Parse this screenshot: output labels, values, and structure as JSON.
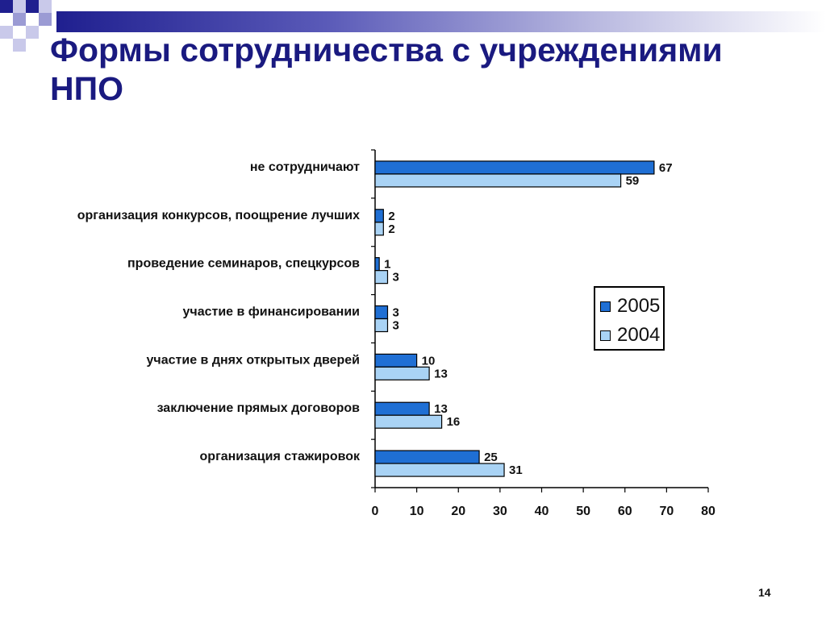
{
  "slide": {
    "title_line1": "Формы сотрудничества с учреждениями",
    "title_line2": "НПО",
    "page_number": "14",
    "colors": {
      "title": "#1a1a80",
      "deco_dark": "#1f1f8f",
      "deco_light": "#9b9bd4"
    }
  },
  "chart_data": {
    "type": "bar",
    "orientation": "horizontal",
    "categories": [
      "не сотрудничают",
      "организация конкурсов, поощрение лучших",
      "проведение семинаров, спецкурсов",
      "участие в финансировании",
      "участие в днях открытых дверей",
      "заключение прямых договоров",
      "организация стажировок"
    ],
    "series": [
      {
        "name": "2005",
        "color": "#1f6fd4",
        "values": [
          67,
          2,
          1,
          3,
          10,
          13,
          25
        ]
      },
      {
        "name": "2004",
        "color": "#a9d3f5",
        "values": [
          59,
          2,
          3,
          3,
          13,
          16,
          31
        ]
      }
    ],
    "xlim": [
      0,
      80
    ],
    "xticks": [
      0,
      10,
      20,
      30,
      40,
      50,
      60,
      70,
      80
    ],
    "legend_position": "right",
    "grid": false
  }
}
